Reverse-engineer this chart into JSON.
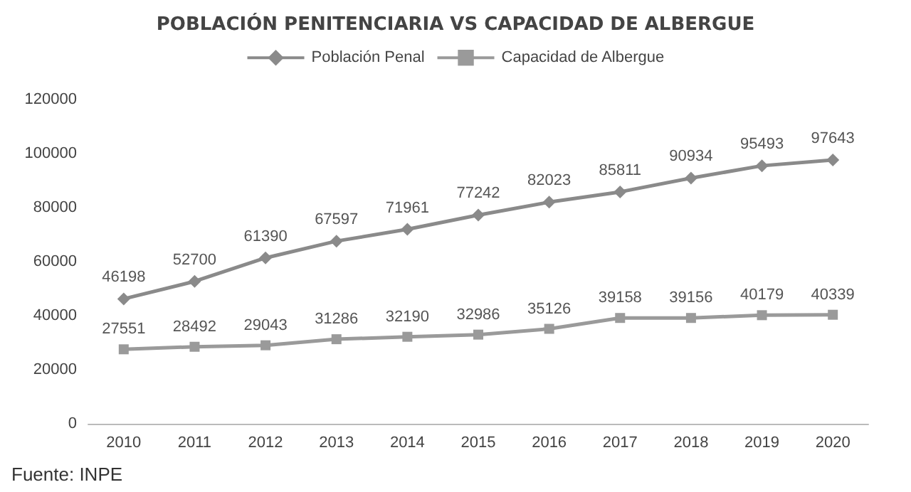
{
  "chart_data": {
    "type": "line",
    "title": "POBLACIÓN PENITENCIARIA VS CAPACIDAD DE ALBERGUE",
    "categories": [
      "2010",
      "2011",
      "2012",
      "2013",
      "2014",
      "2015",
      "2016",
      "2017",
      "2018",
      "2019",
      "2020"
    ],
    "series": [
      {
        "name": "Población Penal",
        "color": "#8a8a8a",
        "marker": "diamond",
        "values": [
          46198,
          52700,
          61390,
          67597,
          71961,
          77242,
          82023,
          85811,
          90934,
          95493,
          97643
        ]
      },
      {
        "name": "Capacidad de Albergue",
        "color": "#9a9a9a",
        "marker": "square",
        "values": [
          27551,
          28492,
          29043,
          31286,
          32190,
          32986,
          35126,
          39158,
          39156,
          40179,
          40339
        ]
      }
    ],
    "ylim": [
      0,
      120000
    ],
    "yticks": [
      0,
      20000,
      40000,
      60000,
      80000,
      100000,
      120000
    ],
    "grid": false,
    "legend": "top",
    "data_labels": true,
    "line_style": "solid",
    "annotations": [
      "Fuente: INPE"
    ]
  }
}
